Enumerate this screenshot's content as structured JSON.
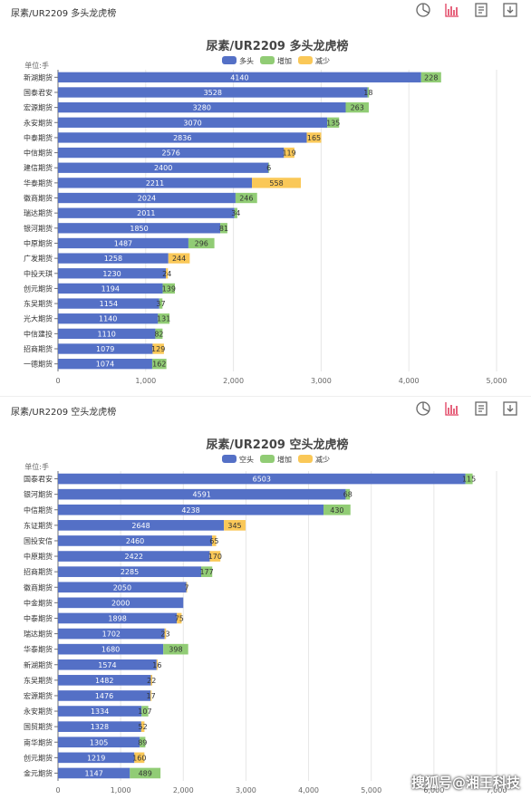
{
  "panels": [
    {
      "header_title": "尿素/UR2209 多头龙虎榜",
      "chart_data": {
        "type": "bar",
        "orientation": "horizontal",
        "stacked": true,
        "title": "尿素/UR2209 多头龙虎榜",
        "unit_label": "单位:手",
        "categories": [
          "新湖期货",
          "国泰君安",
          "宏源期货",
          "永安期货",
          "中泰期货",
          "中信期货",
          "建信期货",
          "华泰期货",
          "徽商期货",
          "瑞达期货",
          "银河期货",
          "中原期货",
          "广发期货",
          "中投天琪",
          "创元期货",
          "东吴期货",
          "光大期货",
          "中信建投",
          "招商期货",
          "一德期货"
        ],
        "series": [
          {
            "name": "多头",
            "color": "#5470c6",
            "values": [
              4140,
              3528,
              3280,
              3070,
              2836,
              2576,
              2400,
              2211,
              2024,
              2011,
              1850,
              1487,
              1258,
              1230,
              1194,
              1154,
              1140,
              1110,
              1079,
              1074
            ]
          },
          {
            "name": "增加",
            "color": "#91cc75",
            "values": [
              228,
              18,
              263,
              135,
              null,
              null,
              6,
              null,
              246,
              34,
              81,
              296,
              null,
              null,
              139,
              37,
              131,
              82,
              null,
              162
            ]
          },
          {
            "name": "减少",
            "color": "#fac858",
            "values": [
              null,
              null,
              null,
              null,
              165,
              119,
              null,
              558,
              null,
              null,
              null,
              null,
              244,
              24,
              null,
              null,
              null,
              null,
              129,
              null
            ]
          }
        ],
        "xlim": [
          0,
          5000
        ],
        "xticks": [
          "0",
          "1,000",
          "2,000",
          "3,000",
          "4,000",
          "5,000"
        ],
        "legend_position": "top-center",
        "grid": true
      }
    },
    {
      "header_title": "尿素/UR2209 空头龙虎榜",
      "chart_data": {
        "type": "bar",
        "orientation": "horizontal",
        "stacked": true,
        "title": "尿素/UR2209 空头龙虎榜",
        "unit_label": "单位:手",
        "categories": [
          "国泰君安",
          "银河期货",
          "中信期货",
          "东证期货",
          "国投安信",
          "中原期货",
          "招商期货",
          "徽商期货",
          "中金期货",
          "中泰期货",
          "瑞达期货",
          "华泰期货",
          "新湖期货",
          "东吴期货",
          "宏源期货",
          "永安期货",
          "国贸期货",
          "南华期货",
          "创元期货",
          "金元期货"
        ],
        "series": [
          {
            "name": "空头",
            "color": "#5470c6",
            "values": [
              6503,
              4591,
              4238,
              2648,
              2460,
              2422,
              2285,
              2050,
              2000,
              1898,
              1702,
              1680,
              1574,
              1482,
              1476,
              1334,
              1328,
              1305,
              1219,
              1147
            ]
          },
          {
            "name": "增加",
            "color": "#91cc75",
            "values": [
              115,
              68,
              430,
              null,
              null,
              null,
              177,
              null,
              null,
              null,
              null,
              398,
              null,
              null,
              null,
              107,
              null,
              89,
              null,
              489
            ]
          },
          {
            "name": "减少",
            "color": "#fac858",
            "values": [
              null,
              null,
              null,
              345,
              65,
              170,
              null,
              7,
              null,
              75,
              23,
              null,
              16,
              22,
              17,
              null,
              52,
              null,
              160,
              null
            ]
          }
        ],
        "xlim": [
          0,
          7000
        ],
        "xticks": [
          "0",
          "1,000",
          "2,000",
          "3,000",
          "4,000",
          "5,000",
          "6,000",
          "7,000"
        ],
        "legend_position": "top-center",
        "grid": true
      }
    }
  ],
  "toolbar_icons": [
    "pie-chart-icon",
    "bar-chart-icon",
    "data-view-icon",
    "download-icon"
  ],
  "watermark": "搜狐号@湘王科技"
}
